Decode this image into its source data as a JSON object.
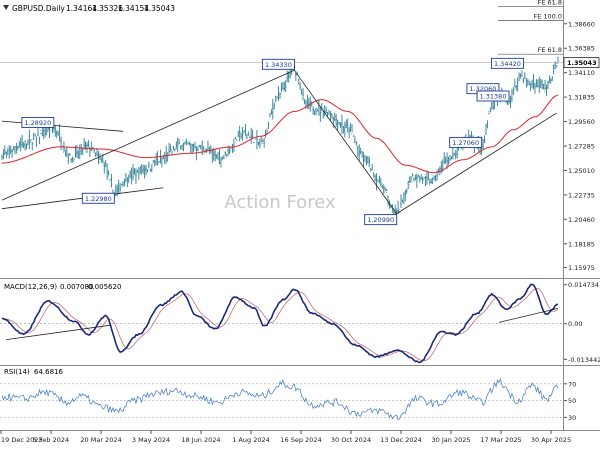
{
  "chart_data": {
    "type": "line",
    "symbol_label": "GBPUSD.Daily",
    "ohlc": [
      "1.34164",
      "1.35326",
      "1.34154",
      "1.35043"
    ],
    "watermark": "Action Forex",
    "colors": {
      "price": "#2e7f94",
      "ma": "#e0242b",
      "macd": "#1a2a7a",
      "signal": "#c05a6a",
      "rsi": "#3a78c8",
      "trend": "#222222"
    },
    "x_dates": [
      "19 Dec 2023",
      "5 Feb 2024",
      "20 Mar 2024",
      "3 May 2024",
      "18 Jun 2024",
      "1 Aug 2024",
      "16 Sep 2024",
      "30 Oct 2024",
      "13 Dec 2024",
      "30 Jan 2025",
      "17 Mar 2025",
      "30 Apr 2025"
    ],
    "price_panel": {
      "ylim": [
        1.15,
        1.405
      ],
      "ticks": [
        "1.38660",
        "1.36385",
        "1.34110",
        "1.31835",
        "1.29560",
        "1.27285",
        "1.25010",
        "1.22735",
        "1.20460",
        "1.18185",
        "1.15975"
      ],
      "last_price": "1.35043",
      "fib_levels": [
        {
          "label": "FE 61.8",
          "value": 1.4025
        },
        {
          "label": "FE 100.0",
          "value": 1.3895
        },
        {
          "label": "FE 61.8",
          "value": 1.3583
        }
      ],
      "callouts": [
        {
          "label": "1.28920",
          "date_index": 36,
          "value": 1.2892
        },
        {
          "label": "1.22980",
          "date_index": 78,
          "value": 1.2298
        },
        {
          "label": "1.34330",
          "date_index": 203,
          "value": 1.3433
        },
        {
          "label": "1.20990",
          "date_index": 274,
          "value": 1.2099
        },
        {
          "label": "1.27060",
          "date_index": 333,
          "value": 1.2706
        },
        {
          "label": "1.32060",
          "date_index": 345,
          "value": 1.3206
        },
        {
          "label": "1.31380",
          "date_index": 352,
          "value": 1.3138
        },
        {
          "label": "1.34420",
          "date_index": 362,
          "value": 1.3442
        }
      ],
      "trendlines": [
        {
          "from": [
            0,
            1.296
          ],
          "to": [
            84,
            1.2865
          ]
        },
        {
          "from": [
            0,
            1.2145
          ],
          "to": [
            112,
            1.234
          ]
        },
        {
          "from": [
            0,
            1.2225
          ],
          "to": [
            203,
            1.3433
          ]
        },
        {
          "from": [
            203,
            1.3433
          ],
          "to": [
            274,
            1.2099
          ]
        },
        {
          "from": [
            274,
            1.2099
          ],
          "to": [
            385,
            1.3035
          ]
        }
      ]
    },
    "macd_panel": {
      "label": "MACD(12,26,9)",
      "values": [
        "0.007080",
        "0.005620"
      ],
      "ticks": [
        "0.014734",
        "0.00",
        "-0.013442"
      ],
      "ylim": [
        -0.0152,
        0.0165
      ]
    },
    "rsi_panel": {
      "label": "RSI(14)",
      "value": "64.6816",
      "ticks": [
        "70",
        "50",
        "30"
      ],
      "ylim": [
        15,
        90
      ]
    },
    "price_anchors": [
      [
        0,
        1.265
      ],
      [
        15,
        1.275
      ],
      [
        36,
        1.289
      ],
      [
        48,
        1.262
      ],
      [
        60,
        1.272
      ],
      [
        70,
        1.258
      ],
      [
        78,
        1.23
      ],
      [
        88,
        1.245
      ],
      [
        100,
        1.252
      ],
      [
        110,
        1.26
      ],
      [
        125,
        1.275
      ],
      [
        140,
        1.27
      ],
      [
        152,
        1.262
      ],
      [
        168,
        1.285
      ],
      [
        180,
        1.275
      ],
      [
        192,
        1.32
      ],
      [
        203,
        1.343
      ],
      [
        212,
        1.31
      ],
      [
        225,
        1.305
      ],
      [
        240,
        1.29
      ],
      [
        252,
        1.26
      ],
      [
        262,
        1.24
      ],
      [
        274,
        1.21
      ],
      [
        285,
        1.245
      ],
      [
        298,
        1.24
      ],
      [
        310,
        1.26
      ],
      [
        325,
        1.28
      ],
      [
        333,
        1.27
      ],
      [
        340,
        1.31
      ],
      [
        345,
        1.32
      ],
      [
        352,
        1.314
      ],
      [
        360,
        1.338
      ],
      [
        368,
        1.33
      ],
      [
        378,
        1.328
      ],
      [
        386,
        1.35
      ]
    ],
    "ma_anchors": [
      [
        0,
        1.257
      ],
      [
        40,
        1.272
      ],
      [
        70,
        1.27
      ],
      [
        100,
        1.262
      ],
      [
        130,
        1.266
      ],
      [
        160,
        1.272
      ],
      [
        180,
        1.282
      ],
      [
        203,
        1.305
      ],
      [
        222,
        1.316
      ],
      [
        240,
        1.305
      ],
      [
        260,
        1.28
      ],
      [
        280,
        1.255
      ],
      [
        300,
        1.248
      ],
      [
        320,
        1.26
      ],
      [
        340,
        1.272
      ],
      [
        355,
        1.288
      ],
      [
        370,
        1.3
      ],
      [
        386,
        1.32
      ]
    ],
    "macd_anchors": [
      [
        0,
        0.002
      ],
      [
        15,
        -0.004
      ],
      [
        32,
        0.0085
      ],
      [
        50,
        0.001
      ],
      [
        60,
        -0.004
      ],
      [
        72,
        0.003
      ],
      [
        82,
        -0.0105
      ],
      [
        95,
        -0.004
      ],
      [
        110,
        0.007
      ],
      [
        125,
        0.012
      ],
      [
        135,
        0.003
      ],
      [
        148,
        -0.002
      ],
      [
        162,
        0.01
      ],
      [
        175,
        0.006
      ],
      [
        182,
        -0.001
      ],
      [
        195,
        0.009
      ],
      [
        203,
        0.013
      ],
      [
        215,
        0.004
      ],
      [
        230,
        0.0
      ],
      [
        245,
        -0.008
      ],
      [
        260,
        -0.0125
      ],
      [
        274,
        -0.01
      ],
      [
        290,
        -0.0145
      ],
      [
        305,
        -0.003
      ],
      [
        315,
        -0.004
      ],
      [
        330,
        0.004
      ],
      [
        340,
        0.011
      ],
      [
        350,
        0.0055
      ],
      [
        360,
        0.0095
      ],
      [
        368,
        0.0148
      ],
      [
        378,
        0.0035
      ],
      [
        386,
        0.0071
      ]
    ],
    "rsi_anchors": [
      [
        0,
        55
      ],
      [
        15,
        52
      ],
      [
        30,
        60
      ],
      [
        45,
        48
      ],
      [
        55,
        55
      ],
      [
        70,
        42
      ],
      [
        80,
        37
      ],
      [
        92,
        50
      ],
      [
        105,
        58
      ],
      [
        120,
        62
      ],
      [
        135,
        55
      ],
      [
        150,
        48
      ],
      [
        165,
        60
      ],
      [
        180,
        55
      ],
      [
        195,
        70
      ],
      [
        203,
        66
      ],
      [
        215,
        45
      ],
      [
        232,
        48
      ],
      [
        246,
        35
      ],
      [
        262,
        38
      ],
      [
        274,
        30
      ],
      [
        288,
        52
      ],
      [
        302,
        46
      ],
      [
        318,
        60
      ],
      [
        333,
        48
      ],
      [
        345,
        72
      ],
      [
        358,
        50
      ],
      [
        368,
        68
      ],
      [
        378,
        52
      ],
      [
        386,
        65
      ]
    ]
  }
}
